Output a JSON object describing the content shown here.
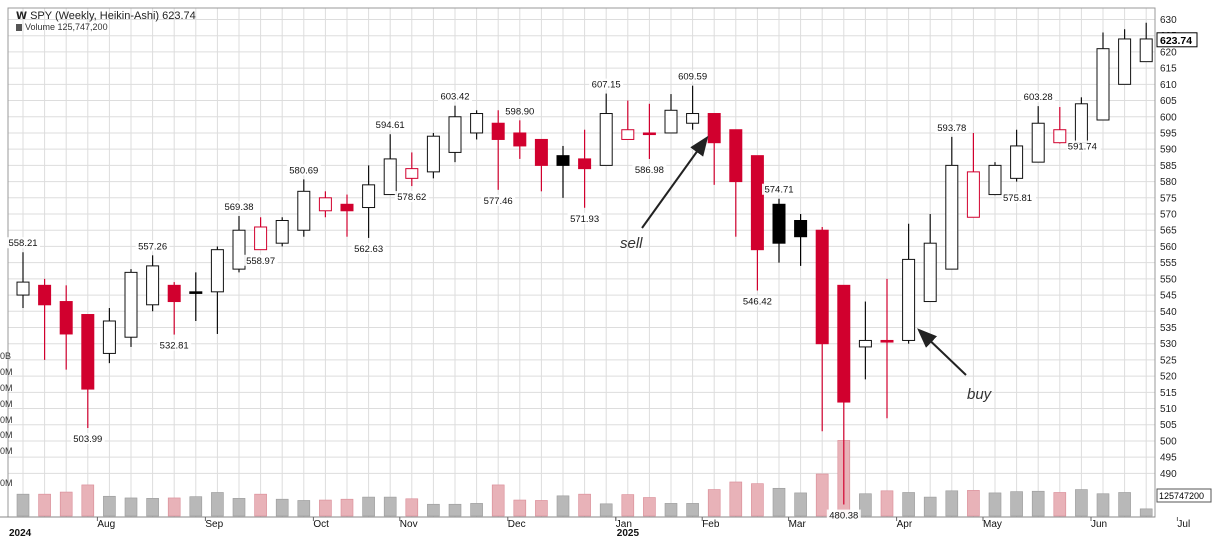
{
  "header": {
    "title": "SPY (Weekly, Heikin-Ashi) 623.74",
    "volume_label": "Volume 125,747,200"
  },
  "colors": {
    "up_body": "#ffffff",
    "up_outline": "#111111",
    "down_body": "#d1002e",
    "doji": "#000000",
    "volume_up": "#b8b8b8",
    "volume_down": "#e8b2b8",
    "grid": "#dddddd",
    "price_tag": "#000000"
  },
  "chart_data": {
    "type": "candlestick",
    "style": "heikin-ashi weekly",
    "ylim": [
      480,
      632
    ],
    "yticks": [
      490,
      495,
      500,
      505,
      510,
      515,
      520,
      525,
      530,
      535,
      540,
      545,
      550,
      555,
      560,
      565,
      570,
      575,
      580,
      585,
      590,
      595,
      600,
      605,
      610,
      615,
      620,
      625,
      630
    ],
    "last_price": "623.74",
    "volume_last_label": "125747200",
    "volume_left_ticks": [
      "0B",
      "0M",
      "0M",
      "0M",
      "0M",
      "0M",
      "0M",
      "0M"
    ],
    "x_labels": [
      {
        "i": 0,
        "label": "2024"
      },
      {
        "i": 4,
        "label": "Aug"
      },
      {
        "i": 9,
        "label": "Sep"
      },
      {
        "i": 14,
        "label": "Oct"
      },
      {
        "i": 18,
        "label": "Nov"
      },
      {
        "i": 23,
        "label": "Dec"
      },
      {
        "i": 28,
        "label": "Jan"
      },
      {
        "i": 28,
        "label": "2025"
      },
      {
        "i": 32,
        "label": "Feb"
      },
      {
        "i": 36,
        "label": "Mar"
      },
      {
        "i": 41,
        "label": "Apr"
      },
      {
        "i": 45,
        "label": "May"
      },
      {
        "i": 50,
        "label": "Jun"
      },
      {
        "i": 54,
        "label": "Jul"
      }
    ],
    "candles": [
      {
        "o": 545,
        "c": 549,
        "h": 558.21,
        "l": 541,
        "t": "up",
        "vol": 0.52
      },
      {
        "o": 548,
        "c": 542,
        "h": 550,
        "l": 525,
        "t": "down",
        "vol": 0.52
      },
      {
        "o": 543,
        "c": 533,
        "h": 548,
        "l": 522,
        "t": "down",
        "vol": 0.57
      },
      {
        "o": 539,
        "c": 516,
        "h": 539,
        "l": 503.99,
        "t": "down",
        "vol": 0.74
      },
      {
        "o": 527,
        "c": 537,
        "h": 541,
        "l": 524,
        "t": "up",
        "vol": 0.47
      },
      {
        "o": 532,
        "c": 552,
        "h": 553,
        "l": 529,
        "t": "up",
        "vol": 0.43
      },
      {
        "o": 542,
        "c": 554,
        "h": 557.26,
        "l": 540,
        "t": "up",
        "vol": 0.42
      },
      {
        "o": 548,
        "c": 543,
        "h": 549,
        "l": 532.81,
        "t": "down",
        "vol": 0.43
      },
      {
        "o": 546,
        "c": 546,
        "h": 552,
        "l": 537,
        "t": "doji",
        "vol": 0.46
      },
      {
        "o": 546,
        "c": 559,
        "h": 560,
        "l": 533,
        "t": "up",
        "vol": 0.56
      },
      {
        "o": 553,
        "c": 565,
        "h": 569.38,
        "l": 552,
        "t": "up",
        "vol": 0.42
      },
      {
        "o": 559,
        "c": 566,
        "h": 569,
        "l": 558.97,
        "t": "upred",
        "vol": 0.52
      },
      {
        "o": 561,
        "c": 568,
        "h": 569,
        "l": 560,
        "t": "up",
        "vol": 0.4
      },
      {
        "o": 565,
        "c": 577,
        "h": 580.69,
        "l": 563,
        "t": "up",
        "vol": 0.37
      },
      {
        "o": 571,
        "c": 575,
        "h": 577,
        "l": 569,
        "t": "upred",
        "vol": 0.38
      },
      {
        "o": 573,
        "c": 571,
        "h": 576,
        "l": 563,
        "t": "down",
        "vol": 0.4
      },
      {
        "o": 572,
        "c": 579,
        "h": 585,
        "l": 562.63,
        "t": "up",
        "vol": 0.45
      },
      {
        "o": 576,
        "c": 587,
        "h": 594.61,
        "l": 576,
        "t": "up",
        "vol": 0.45
      },
      {
        "o": 581,
        "c": 584,
        "h": 589,
        "l": 578.62,
        "t": "upred",
        "vol": 0.41
      },
      {
        "o": 583,
        "c": 594,
        "h": 595,
        "l": 581,
        "t": "up",
        "vol": 0.28
      },
      {
        "o": 589,
        "c": 600,
        "h": 603.42,
        "l": 586,
        "t": "up",
        "vol": 0.28
      },
      {
        "o": 595,
        "c": 601,
        "h": 602,
        "l": 593,
        "t": "up",
        "vol": 0.3
      },
      {
        "o": 598,
        "c": 593,
        "h": 602,
        "l": 577.46,
        "t": "down",
        "vol": 0.74
      },
      {
        "o": 595,
        "c": 591,
        "h": 598.9,
        "l": 587,
        "t": "down",
        "vol": 0.38
      },
      {
        "o": 593,
        "c": 585,
        "h": 593,
        "l": 577,
        "t": "down",
        "vol": 0.37
      },
      {
        "o": 588,
        "c": 585,
        "h": 591,
        "l": 575,
        "t": "doji",
        "vol": 0.48
      },
      {
        "o": 587,
        "c": 584,
        "h": 596,
        "l": 571.93,
        "t": "down",
        "vol": 0.52
      },
      {
        "o": 585,
        "c": 601,
        "h": 607.15,
        "l": 585,
        "t": "up",
        "vol": 0.29
      },
      {
        "o": 593,
        "c": 596,
        "h": 605,
        "l": 593,
        "t": "upred",
        "vol": 0.51
      },
      {
        "o": 595,
        "c": 595,
        "h": 604,
        "l": 586.98,
        "t": "down",
        "vol": 0.44
      },
      {
        "o": 595,
        "c": 602,
        "h": 607,
        "l": 595,
        "t": "up",
        "vol": 0.3
      },
      {
        "o": 598,
        "c": 601,
        "h": 609.59,
        "l": 596,
        "t": "up",
        "vol": 0.3
      },
      {
        "o": 601,
        "c": 592,
        "h": 601,
        "l": 579,
        "t": "down",
        "vol": 0.63
      },
      {
        "o": 596,
        "c": 580,
        "h": 596,
        "l": 563,
        "t": "down",
        "vol": 0.81
      },
      {
        "o": 588,
        "c": 559,
        "h": 588,
        "l": 546.42,
        "t": "down",
        "vol": 0.77
      },
      {
        "o": 573,
        "c": 561,
        "h": 574.71,
        "l": 555,
        "t": "doji",
        "vol": 0.66
      },
      {
        "o": 568,
        "c": 563,
        "h": 570,
        "l": 554,
        "t": "doji",
        "vol": 0.55
      },
      {
        "o": 565,
        "c": 530,
        "h": 566,
        "l": 503,
        "t": "down",
        "vol": 1.0
      },
      {
        "o": 548,
        "c": 512,
        "h": 548,
        "l": 480.38,
        "t": "down",
        "vol": 1.8
      },
      {
        "o": 529,
        "c": 531,
        "h": 543,
        "l": 519,
        "t": "up",
        "vol": 0.53
      },
      {
        "o": 531,
        "c": 531,
        "h": 550,
        "l": 507,
        "t": "down",
        "vol": 0.6
      },
      {
        "o": 531,
        "c": 556,
        "h": 567,
        "l": 530,
        "t": "up",
        "vol": 0.56
      },
      {
        "o": 543,
        "c": 561,
        "h": 570,
        "l": 543,
        "t": "up",
        "vol": 0.45
      },
      {
        "o": 553,
        "c": 585,
        "h": 593.78,
        "l": 553,
        "t": "up",
        "vol": 0.6
      },
      {
        "o": 569,
        "c": 583,
        "h": 595,
        "l": 569,
        "t": "upred",
        "vol": 0.61
      },
      {
        "o": 576,
        "c": 585,
        "h": 586,
        "l": 575.81,
        "t": "up",
        "vol": 0.55
      },
      {
        "o": 581,
        "c": 591,
        "h": 596,
        "l": 580,
        "t": "up",
        "vol": 0.58
      },
      {
        "o": 586,
        "c": 598,
        "h": 603.28,
        "l": 586,
        "t": "up",
        "vol": 0.59
      },
      {
        "o": 592,
        "c": 596,
        "h": 603,
        "l": 591.74,
        "t": "upred",
        "vol": 0.56
      },
      {
        "o": 592,
        "c": 604,
        "h": 606,
        "l": 590,
        "t": "up",
        "vol": 0.63
      },
      {
        "o": 599,
        "c": 621,
        "h": 626,
        "l": 599,
        "t": "up",
        "vol": 0.53
      },
      {
        "o": 610,
        "c": 624,
        "h": 627,
        "l": 610,
        "t": "up",
        "vol": 0.56
      },
      {
        "o": 617,
        "c": 624,
        "h": 629,
        "l": 617,
        "t": "up",
        "vol": 0.17
      }
    ],
    "price_labels": [
      {
        "i": 0,
        "v": "558.21",
        "pos": "above"
      },
      {
        "i": 3,
        "v": "503.99",
        "pos": "below"
      },
      {
        "i": 6,
        "v": "557.26",
        "pos": "above"
      },
      {
        "i": 7,
        "v": "532.81",
        "pos": "below"
      },
      {
        "i": 10,
        "v": "569.38",
        "pos": "above"
      },
      {
        "i": 11,
        "v": "558.97",
        "pos": "below"
      },
      {
        "i": 13,
        "v": "580.69",
        "pos": "above"
      },
      {
        "i": 16,
        "v": "562.63",
        "pos": "below"
      },
      {
        "i": 17,
        "v": "594.61",
        "pos": "above"
      },
      {
        "i": 18,
        "v": "578.62",
        "pos": "below"
      },
      {
        "i": 20,
        "v": "603.42",
        "pos": "above"
      },
      {
        "i": 22,
        "v": "577.46",
        "pos": "below"
      },
      {
        "i": 23,
        "v": "598.90",
        "pos": "above"
      },
      {
        "i": 26,
        "v": "571.93",
        "pos": "below"
      },
      {
        "i": 27,
        "v": "607.15",
        "pos": "above"
      },
      {
        "i": 29,
        "v": "586.98",
        "pos": "below"
      },
      {
        "i": 31,
        "v": "609.59",
        "pos": "above"
      },
      {
        "i": 34,
        "v": "546.42",
        "pos": "below"
      },
      {
        "i": 35,
        "v": "574.71",
        "pos": "above"
      },
      {
        "i": 38,
        "v": "480.38",
        "pos": "below"
      },
      {
        "i": 43,
        "v": "593.78",
        "pos": "above"
      },
      {
        "i": 45,
        "v": "575.81",
        "pos": "right"
      },
      {
        "i": 47,
        "v": "603.28",
        "pos": "above"
      },
      {
        "i": 48,
        "v": "591.74",
        "pos": "right"
      }
    ],
    "annotations": [
      {
        "text": "sell",
        "i": 34,
        "v": 553,
        "target_i": 32,
        "target_v": 588
      },
      {
        "text": "buy",
        "i": 45,
        "v": 514,
        "target_i": 41,
        "target_v": 529
      }
    ]
  }
}
